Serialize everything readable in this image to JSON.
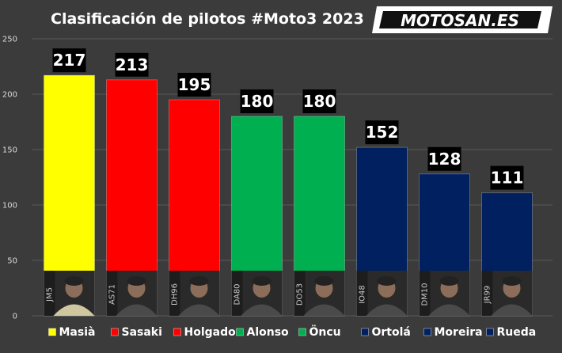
{
  "title": "Clasificación de pilotos #Moto3 2023",
  "logo": {
    "text": "MOTOSAN.ES"
  },
  "chart_data": {
    "type": "bar",
    "categories": [
      "Masià",
      "Sasaki",
      "Holgado",
      "Alonso",
      "Öncu",
      "Ortolá",
      "Moreira",
      "Rueda"
    ],
    "values": [
      217,
      213,
      195,
      180,
      180,
      152,
      128,
      111
    ],
    "bar_colors": [
      "#ffff00",
      "#ff0000",
      "#ff0000",
      "#00b050",
      "#00b050",
      "#002060",
      "#002060",
      "#002060"
    ],
    "rider_numbers": [
      "JM5",
      "AS71",
      "DH96",
      "DA80",
      "DO53",
      "IO48",
      "DM10",
      "JR99"
    ],
    "yticks": [
      0,
      50,
      100,
      150,
      200,
      250
    ],
    "ylim": [
      0,
      250
    ],
    "grid": true,
    "legend": "bottom",
    "data_labels": true
  }
}
